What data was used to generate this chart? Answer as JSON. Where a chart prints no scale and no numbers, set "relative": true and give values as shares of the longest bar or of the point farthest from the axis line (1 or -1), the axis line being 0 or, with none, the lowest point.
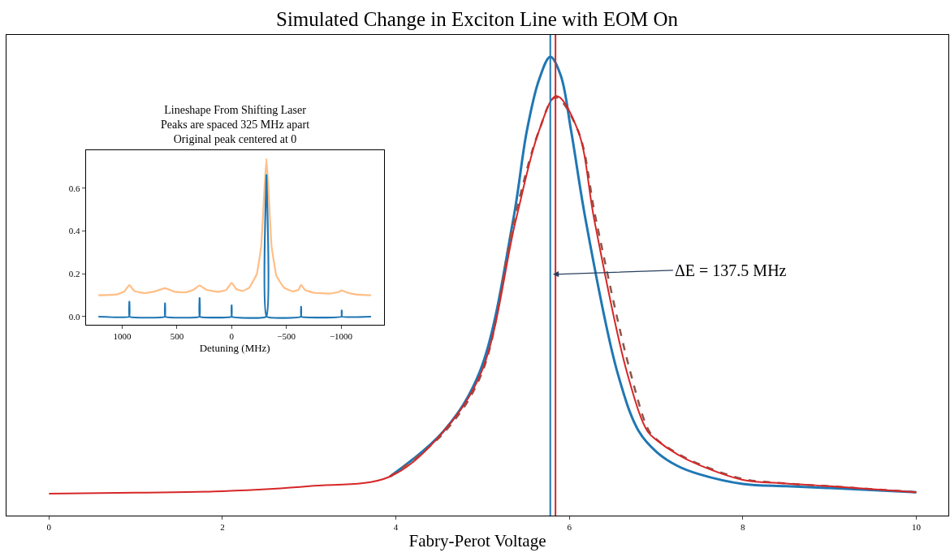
{
  "chart_data": [
    {
      "type": "line",
      "title": "Simulated Change in Exciton Line with EOM On",
      "xlabel": "Fabry-Perot Voltage",
      "relative": true,
      "xlim": [
        -0.49,
        10.37
      ],
      "xticks": [
        0,
        2,
        4,
        6,
        8,
        10
      ],
      "series": [
        {
          "color": "#1f77b4",
          "line_style": "solid",
          "x": [
            3.93,
            4.55,
            4.97,
            5.35,
            5.51,
            5.65,
            5.78,
            5.9,
            6.02,
            6.19,
            6.55,
            6.8,
            7.01,
            7.25,
            7.5,
            8,
            8.5,
            9,
            10
          ],
          "values": [
            0.085,
            0.184,
            0.315,
            0.642,
            0.839,
            0.95,
            1.0,
            0.96,
            0.839,
            0.642,
            0.315,
            0.184,
            0.138,
            0.108,
            0.09,
            0.069,
            0.064,
            0.06,
            0.051
          ]
        },
        {
          "color": "#8c564b",
          "line_style": "dashed",
          "x": [
            3.93,
            4.55,
            4.99,
            5.36,
            5.65,
            5.84,
            6.1,
            6.31,
            6.7,
            6.92,
            7.02,
            7.25,
            7.5,
            8,
            8.5,
            9,
            10
          ],
          "values": [
            0.085,
            0.18,
            0.31,
            0.642,
            0.839,
            0.912,
            0.839,
            0.642,
            0.315,
            0.184,
            0.164,
            0.135,
            0.112,
            0.08,
            0.07,
            0.064,
            0.051
          ]
        },
        {
          "color": "#d62728",
          "line_style": "solid",
          "x": [
            0,
            1,
            2,
            3,
            3.93,
            4.55,
            4.99,
            5.38,
            5.65,
            5.85,
            6.1,
            6.29,
            6.66,
            6.9,
            7.01,
            7.25,
            7.5,
            8,
            8.5,
            9,
            10
          ],
          "values": [
            0.048,
            0.05,
            0.053,
            0.064,
            0.085,
            0.184,
            0.315,
            0.642,
            0.839,
            0.915,
            0.839,
            0.642,
            0.315,
            0.184,
            0.164,
            0.133,
            0.11,
            0.078,
            0.07,
            0.064,
            0.051
          ]
        }
      ],
      "ref_lines": [
        {
          "axis": "x",
          "value": 5.78,
          "color": "#1f77b4"
        },
        {
          "axis": "x",
          "value": 5.84,
          "color": "#d62728"
        }
      ],
      "annotations": [
        {
          "text": "ΔE = 137.5 MHz",
          "x": 5.81,
          "y": 0.526
        }
      ]
    },
    {
      "type": "line",
      "title": "Lineshape From Shifting Laser\nPeaks are spaced 325 MHz apart\nOriginal peak centered at 0",
      "xlabel": "Detuning (MHz)",
      "xlim": [
        1333,
        -1391
      ],
      "xticks": [
        {
          "value": 1000,
          "label": "1000"
        },
        {
          "value": 500,
          "label": "500"
        },
        {
          "value": 0,
          "label": "0"
        },
        {
          "value": -500,
          "label": "−500"
        },
        {
          "value": -1000,
          "label": "−1000"
        }
      ],
      "ylim": [
        -0.038,
        0.778
      ],
      "yticks": [
        {
          "value": 0,
          "label": "0.0"
        },
        {
          "value": 0.2,
          "label": "0.2"
        },
        {
          "value": 0.4,
          "label": "0.4"
        },
        {
          "value": 0.6,
          "label": "0.6"
        }
      ],
      "series": [
        {
          "color": "#ffbe86",
          "line_style": "solid",
          "x": [
            1218,
            1050,
            980,
            935,
            890,
            800,
            700,
            609,
            520,
            420,
            350,
            293,
            230,
            120,
            50,
            0,
            -40,
            -100,
            -160,
            -230,
            -270,
            -300,
            -318,
            -336,
            -365,
            -410,
            -480,
            -560,
            -610,
            -635,
            -670,
            -750,
            -900,
            -980,
            -1006,
            -1060,
            -1150,
            -1274
          ],
          "values": [
            0.1,
            0.104,
            0.118,
            0.148,
            0.12,
            0.11,
            0.118,
            0.133,
            0.116,
            0.114,
            0.125,
            0.146,
            0.125,
            0.116,
            0.125,
            0.158,
            0.13,
            0.12,
            0.135,
            0.2,
            0.33,
            0.6,
            0.738,
            0.6,
            0.33,
            0.19,
            0.135,
            0.118,
            0.125,
            0.149,
            0.125,
            0.112,
            0.108,
            0.116,
            0.123,
            0.112,
            0.103,
            0.1
          ]
        },
        {
          "color": "#1f77b4",
          "line_style": "solid",
          "x": [
            1218,
            937,
            935,
            933,
            611,
            609,
            607,
            295,
            293,
            291,
            2,
            0,
            -2,
            -316,
            -318,
            -320,
            -633,
            -635,
            -637,
            -1004,
            -1006,
            -1008,
            -1274
          ],
          "values": [
            0,
            0,
            0.07,
            0,
            0,
            0.062,
            0,
            0,
            0.087,
            0,
            0,
            0.053,
            0,
            0,
            0.662,
            0,
            0,
            0.046,
            0,
            0,
            0.029,
            0,
            0
          ]
        }
      ]
    }
  ]
}
